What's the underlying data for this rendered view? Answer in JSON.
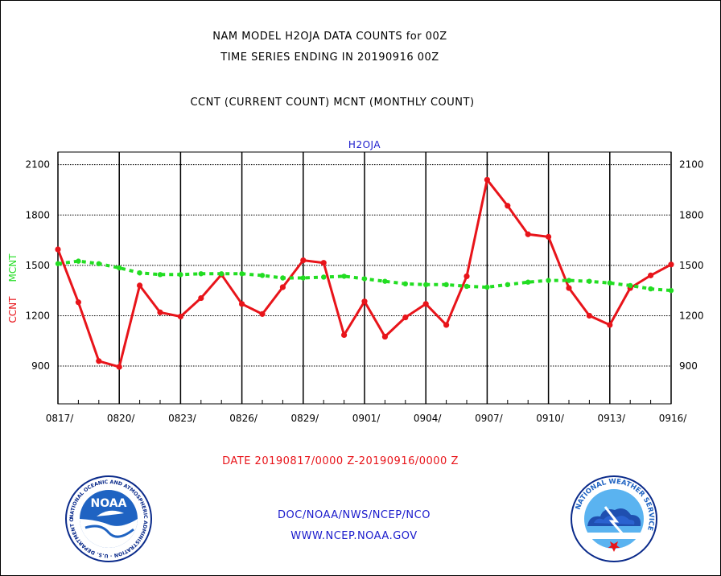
{
  "header": {
    "title_line1": "NAM MODEL H2OJA DATA COUNTS for 00Z",
    "title_line2": "TIME SERIES ENDING IN 20190916 00Z",
    "subtitle": "CCNT (CURRENT COUNT) MCNT (MONTHLY COUNT)"
  },
  "footer": {
    "date_range": "DATE 20190817/0000 Z-20190916/0000 Z",
    "org_path": "DOC/NOAA/NWS/NCEP/NCO",
    "website": "WWW.NCEP.NOAA.GOV"
  },
  "logos": {
    "noaa_text": "NOAA",
    "noaa_ring_text": "NATIONAL OCEANIC AND ATMOSPHERIC ADMINISTRATION · U.S. DEPARTMENT OF COMMERCE ·",
    "nws_ring_text": "NATIONAL WEATHER SERVICE"
  },
  "colors": {
    "ccnt": "#e8141a",
    "mcnt": "#22dd22",
    "label_blue": "#1a1acc",
    "noaa_blue": "#1f63c2",
    "noaa_navy": "#0a2a8a"
  },
  "chart_data": {
    "type": "line",
    "plot_label": "H2OJA",
    "ylabel_ccnt": "CCNT",
    "ylabel_mcnt": "MCNT",
    "ylim": [
      675,
      2175
    ],
    "yticks": [
      900,
      1200,
      1500,
      1800,
      2100
    ],
    "xlabels": [
      "0817/",
      "0820/",
      "0823/",
      "0826/",
      "0829/",
      "0901/",
      "0904/",
      "0907/",
      "0910/",
      "0913/",
      "0916/"
    ],
    "x": [
      "0817",
      "0818",
      "0819",
      "0820",
      "0821",
      "0822",
      "0823",
      "0824",
      "0825",
      "0826",
      "0827",
      "0828",
      "0829",
      "0830",
      "0831",
      "0901",
      "0902",
      "0903",
      "0904",
      "0905",
      "0906",
      "0907",
      "0908",
      "0909",
      "0910",
      "0911",
      "0912",
      "0913",
      "0914",
      "0915",
      "0916"
    ],
    "grid": true,
    "series": [
      {
        "name": "CCNT",
        "style": "solid",
        "values": [
          1595,
          1280,
          930,
          895,
          1380,
          1220,
          1195,
          1305,
          1445,
          1270,
          1210,
          1370,
          1530,
          1515,
          1085,
          1285,
          1075,
          1190,
          1270,
          1145,
          1435,
          2010,
          1855,
          1685,
          1670,
          1365,
          1200,
          1145,
          1365,
          1440,
          1505
        ]
      },
      {
        "name": "MCNT",
        "style": "dashed",
        "values": [
          1510,
          1525,
          1510,
          1485,
          1455,
          1445,
          1445,
          1450,
          1450,
          1450,
          1440,
          1425,
          1425,
          1430,
          1435,
          1420,
          1405,
          1390,
          1385,
          1385,
          1375,
          1370,
          1385,
          1400,
          1410,
          1410,
          1405,
          1395,
          1380,
          1360,
          1350
        ]
      }
    ]
  }
}
